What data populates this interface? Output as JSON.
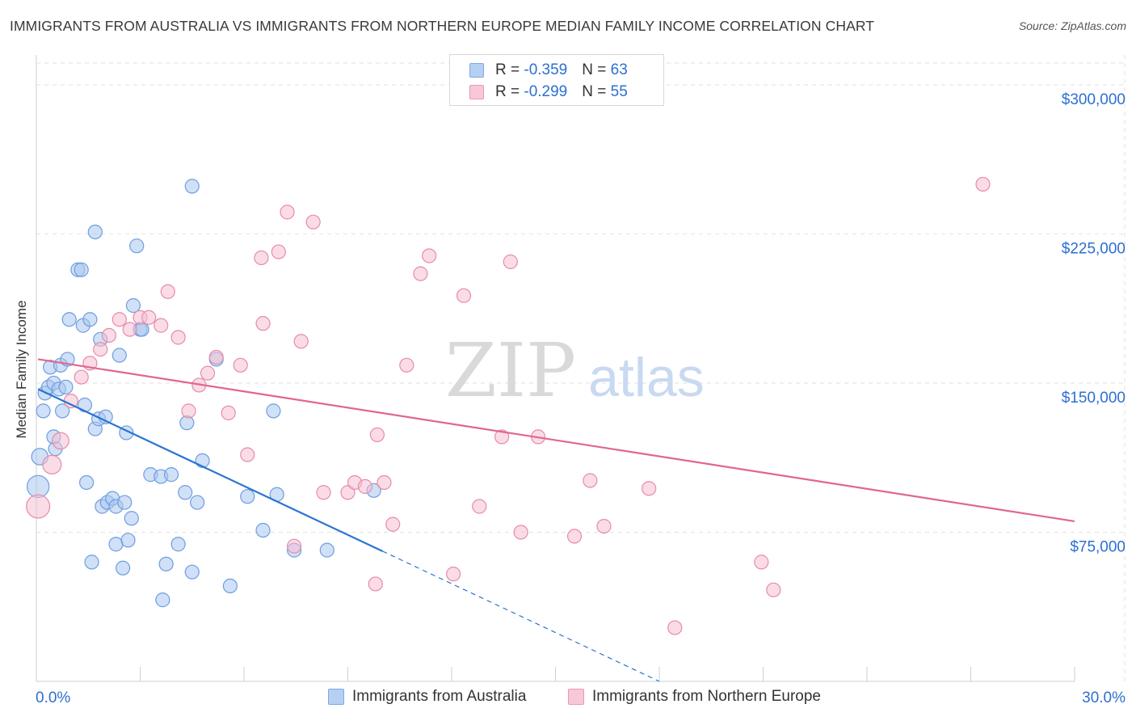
{
  "title": "IMMIGRANTS FROM AUSTRALIA VS IMMIGRANTS FROM NORTHERN EUROPE MEDIAN FAMILY INCOME CORRELATION CHART",
  "source": "Source: ZipAtlas.com",
  "legend": {
    "rows": [
      {
        "r_label": "R = ",
        "r_value": "-0.359",
        "n_label": "N = ",
        "n_value": "63"
      },
      {
        "r_label": "R = ",
        "r_value": "-0.299",
        "n_label": "N = ",
        "n_value": "55"
      }
    ]
  },
  "watermark": {
    "zip": "ZIP",
    "atlas": "atlas"
  },
  "chart_data": {
    "type": "scatter",
    "title": "IMMIGRANTS FROM AUSTRALIA VS IMMIGRANTS FROM NORTHERN EUROPE MEDIAN FAMILY INCOME CORRELATION CHART",
    "xlabel": "",
    "ylabel": "Median Family Income",
    "xlim": [
      0,
      30
    ],
    "ylim": [
      0,
      315000
    ],
    "x_tick_labels": [
      "0.0%",
      "30.0%"
    ],
    "y_ticks": [
      {
        "value": 75000,
        "label": "$75,000"
      },
      {
        "value": 150000,
        "label": "$150,000"
      },
      {
        "value": 225000,
        "label": "$225,000"
      },
      {
        "value": 300000,
        "label": "$300,000"
      }
    ],
    "series": [
      {
        "name": "Immigrants from Australia",
        "color": "#a9c6ee",
        "stroke": "#6d9ee0",
        "line_color": "#2a74d1",
        "trend": {
          "x0": 0.05,
          "y0": 147000,
          "x1": 10.0,
          "y1": 65500,
          "dash_to_x": 18.0,
          "dash_to_y": 0
        },
        "points": [
          {
            "x": 0.05,
            "y": 98000,
            "s": 1.6
          },
          {
            "x": 0.1,
            "y": 113000,
            "s": 1.2
          },
          {
            "x": 0.2,
            "y": 136000
          },
          {
            "x": 0.25,
            "y": 145000
          },
          {
            "x": 0.35,
            "y": 148000
          },
          {
            "x": 0.4,
            "y": 158000
          },
          {
            "x": 0.5,
            "y": 150000
          },
          {
            "x": 0.55,
            "y": 117000
          },
          {
            "x": 0.5,
            "y": 123000
          },
          {
            "x": 0.7,
            "y": 159000
          },
          {
            "x": 0.65,
            "y": 147000
          },
          {
            "x": 0.75,
            "y": 136000
          },
          {
            "x": 0.85,
            "y": 148000
          },
          {
            "x": 0.9,
            "y": 162000
          },
          {
            "x": 0.95,
            "y": 182000
          },
          {
            "x": 1.2,
            "y": 207000
          },
          {
            "x": 1.3,
            "y": 207000
          },
          {
            "x": 1.35,
            "y": 179000
          },
          {
            "x": 1.4,
            "y": 139000
          },
          {
            "x": 1.45,
            "y": 100000
          },
          {
            "x": 1.55,
            "y": 182000
          },
          {
            "x": 1.6,
            "y": 60000
          },
          {
            "x": 1.7,
            "y": 226000
          },
          {
            "x": 1.7,
            "y": 127000
          },
          {
            "x": 1.8,
            "y": 132000
          },
          {
            "x": 1.85,
            "y": 172000
          },
          {
            "x": 1.9,
            "y": 88000
          },
          {
            "x": 2.0,
            "y": 133000
          },
          {
            "x": 2.05,
            "y": 90000
          },
          {
            "x": 2.2,
            "y": 92000
          },
          {
            "x": 2.3,
            "y": 88000
          },
          {
            "x": 2.3,
            "y": 69000
          },
          {
            "x": 2.4,
            "y": 164000
          },
          {
            "x": 2.55,
            "y": 90000
          },
          {
            "x": 2.5,
            "y": 57000
          },
          {
            "x": 2.6,
            "y": 125000
          },
          {
            "x": 2.65,
            "y": 71000
          },
          {
            "x": 2.75,
            "y": 82000
          },
          {
            "x": 2.8,
            "y": 189000
          },
          {
            "x": 2.9,
            "y": 219000
          },
          {
            "x": 3.0,
            "y": 177000
          },
          {
            "x": 3.05,
            "y": 177000
          },
          {
            "x": 3.3,
            "y": 104000
          },
          {
            "x": 3.6,
            "y": 103000
          },
          {
            "x": 3.65,
            "y": 41000
          },
          {
            "x": 3.75,
            "y": 59000
          },
          {
            "x": 3.9,
            "y": 104000
          },
          {
            "x": 4.1,
            "y": 69000
          },
          {
            "x": 4.3,
            "y": 95000
          },
          {
            "x": 4.35,
            "y": 130000
          },
          {
            "x": 4.5,
            "y": 249000
          },
          {
            "x": 4.5,
            "y": 55000
          },
          {
            "x": 4.65,
            "y": 90000
          },
          {
            "x": 4.8,
            "y": 111000
          },
          {
            "x": 5.2,
            "y": 162000
          },
          {
            "x": 5.6,
            "y": 48000
          },
          {
            "x": 6.1,
            "y": 93000
          },
          {
            "x": 6.55,
            "y": 76000
          },
          {
            "x": 6.85,
            "y": 136000
          },
          {
            "x": 6.95,
            "y": 94000
          },
          {
            "x": 7.45,
            "y": 66000
          },
          {
            "x": 8.4,
            "y": 66000
          },
          {
            "x": 9.75,
            "y": 96000
          }
        ]
      },
      {
        "name": "Immigrants from Northern Europe",
        "color": "#f6bfd1",
        "stroke": "#e88aaa",
        "line_color": "#e0668f",
        "trend": {
          "x0": 0.05,
          "y0": 162000,
          "x1": 30.0,
          "y1": 80500
        },
        "points": [
          {
            "x": 0.05,
            "y": 88000,
            "s": 1.7
          },
          {
            "x": 0.45,
            "y": 109000,
            "s": 1.35
          },
          {
            "x": 0.7,
            "y": 121000,
            "s": 1.2
          },
          {
            "x": 1.0,
            "y": 141000
          },
          {
            "x": 1.3,
            "y": 153000
          },
          {
            "x": 1.55,
            "y": 160000
          },
          {
            "x": 1.85,
            "y": 167000
          },
          {
            "x": 2.1,
            "y": 174000
          },
          {
            "x": 2.4,
            "y": 182000
          },
          {
            "x": 2.7,
            "y": 177000
          },
          {
            "x": 3.0,
            "y": 183000
          },
          {
            "x": 3.25,
            "y": 183000
          },
          {
            "x": 3.6,
            "y": 179000
          },
          {
            "x": 3.8,
            "y": 196000
          },
          {
            "x": 4.1,
            "y": 173000
          },
          {
            "x": 4.4,
            "y": 136000
          },
          {
            "x": 4.7,
            "y": 149000
          },
          {
            "x": 4.95,
            "y": 155000
          },
          {
            "x": 5.2,
            "y": 163000
          },
          {
            "x": 5.55,
            "y": 135000
          },
          {
            "x": 5.9,
            "y": 159000
          },
          {
            "x": 6.1,
            "y": 114000
          },
          {
            "x": 6.5,
            "y": 213000
          },
          {
            "x": 6.55,
            "y": 180000
          },
          {
            "x": 7.0,
            "y": 216000
          },
          {
            "x": 7.25,
            "y": 236000
          },
          {
            "x": 7.45,
            "y": 68000
          },
          {
            "x": 7.65,
            "y": 171000
          },
          {
            "x": 8.0,
            "y": 231000
          },
          {
            "x": 8.3,
            "y": 95000
          },
          {
            "x": 9.0,
            "y": 95000
          },
          {
            "x": 9.2,
            "y": 100000
          },
          {
            "x": 9.5,
            "y": 98000
          },
          {
            "x": 9.8,
            "y": 49000
          },
          {
            "x": 9.85,
            "y": 124000
          },
          {
            "x": 10.05,
            "y": 100000
          },
          {
            "x": 10.3,
            "y": 79000
          },
          {
            "x": 10.7,
            "y": 159000
          },
          {
            "x": 11.1,
            "y": 205000
          },
          {
            "x": 11.35,
            "y": 214000
          },
          {
            "x": 12.05,
            "y": 54000
          },
          {
            "x": 12.35,
            "y": 194000
          },
          {
            "x": 12.8,
            "y": 88000
          },
          {
            "x": 13.45,
            "y": 123000
          },
          {
            "x": 13.7,
            "y": 211000
          },
          {
            "x": 14.0,
            "y": 75000
          },
          {
            "x": 14.5,
            "y": 123000
          },
          {
            "x": 15.55,
            "y": 73000
          },
          {
            "x": 16.0,
            "y": 101000
          },
          {
            "x": 16.4,
            "y": 78000
          },
          {
            "x": 17.7,
            "y": 97000
          },
          {
            "x": 18.45,
            "y": 27000
          },
          {
            "x": 20.95,
            "y": 60000
          },
          {
            "x": 21.3,
            "y": 46000
          },
          {
            "x": 27.35,
            "y": 250000
          }
        ]
      }
    ]
  }
}
